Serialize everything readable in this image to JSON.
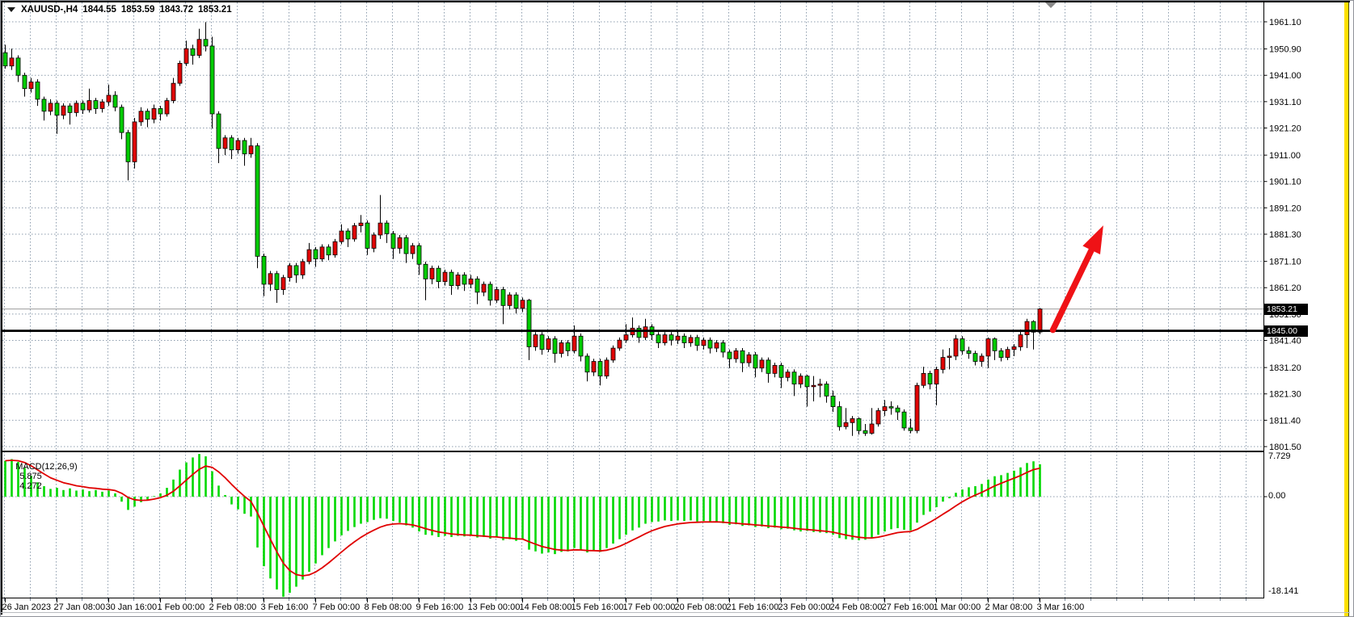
{
  "titlebar": {
    "symbol_period": "XAUUSD-,H4",
    "open": "1844.55",
    "high": "1853.59",
    "low": "1843.72",
    "close": "1853.21"
  },
  "price_axis": {
    "tick_labels": [
      "1961.10",
      "1950.90",
      "1941.00",
      "1931.10",
      "1921.20",
      "1911.00",
      "1901.10",
      "1891.20",
      "1881.30",
      "1871.10",
      "1861.20",
      "1851.30",
      "1841.40",
      "1831.20",
      "1821.30",
      "1811.40",
      "1801.50"
    ],
    "current_price_badge": "1853.21",
    "hline_badge": "1845.00"
  },
  "time_axis": {
    "labels": [
      "26 Jan 2023",
      "27 Jan 08:00",
      "30 Jan 16:00",
      "1 Feb 00:00",
      "2 Feb 08:00",
      "3 Feb 16:00",
      "7 Feb 00:00",
      "8 Feb 08:00",
      "9 Feb 16:00",
      "13 Feb 00:00",
      "14 Feb 08:00",
      "15 Feb 16:00",
      "17 Feb 00:00",
      "20 Feb 08:00",
      "21 Feb 16:00",
      "23 Feb 00:00",
      "24 Feb 08:00",
      "27 Feb 16:00",
      "1 Mar 00:00",
      "2 Mar 08:00",
      "3 Mar 16:00"
    ]
  },
  "macd_panel": {
    "label": "MACD(12,26,9)",
    "macd_value": "5.875",
    "signal_value": "4.272",
    "scale_top": "7.729",
    "scale_zero": "0.00",
    "scale_bottom": "-18.141"
  },
  "colors": {
    "bull_body": "#e00505",
    "bear_body": "#00cc00",
    "candle_outline": "#000000",
    "macd_hist": "#00d800",
    "macd_signal": "#e00000",
    "grid": "#8e9dae",
    "hline": "#000000",
    "current_price_line": "#9b9b9b",
    "arrow": "#ef1216",
    "axis_highlight": "#ffe000",
    "shift_marker": "#888888"
  },
  "chart_data": [
    {
      "type": "candlestick",
      "title": "XAUUSD-,H4",
      "timeframe": "H4",
      "x_labels_every_n_bars": 8,
      "y_ticks": [
        1961.1,
        1950.9,
        1941.0,
        1931.1,
        1921.2,
        1911.0,
        1901.1,
        1891.2,
        1881.3,
        1871.1,
        1861.2,
        1851.3,
        1841.4,
        1831.2,
        1821.3,
        1811.4,
        1801.5
      ],
      "ylim": [
        1800.2,
        1962.8
      ],
      "current_price": 1853.21,
      "horizontal_line": 1845.0,
      "annotations": [
        {
          "type": "arrow",
          "from_bar": 162,
          "from_price": 1845.3,
          "to_bar": 169.8,
          "to_price": 1884.6
        }
      ],
      "ohlc": [
        [
          1949.5,
          1952.5,
          1943.5,
          1944.5
        ],
        [
          1944.5,
          1951,
          1943,
          1947.5
        ],
        [
          1947.5,
          1948.5,
          1938.5,
          1941
        ],
        [
          1941,
          1942,
          1933,
          1936
        ],
        [
          1936,
          1940,
          1934.5,
          1938.5
        ],
        [
          1938.5,
          1939.5,
          1929.5,
          1932
        ],
        [
          1932,
          1933,
          1924,
          1927.5
        ],
        [
          1927.5,
          1932,
          1926,
          1930.5
        ],
        [
          1930.5,
          1931.5,
          1919,
          1926
        ],
        [
          1926,
          1930.5,
          1924.5,
          1929.5
        ],
        [
          1929.5,
          1930.5,
          1922.5,
          1927
        ],
        [
          1927,
          1931.5,
          1925.5,
          1930.5
        ],
        [
          1930.5,
          1931.5,
          1926.5,
          1928
        ],
        [
          1928,
          1936,
          1927,
          1931.5
        ],
        [
          1931.5,
          1932.5,
          1926.5,
          1928.5
        ],
        [
          1928.5,
          1932,
          1927,
          1931
        ],
        [
          1931,
          1937.5,
          1929.5,
          1933.5
        ],
        [
          1933.5,
          1935,
          1927.5,
          1929
        ],
        [
          1929,
          1930,
          1917,
          1919.5
        ],
        [
          1919.5,
          1920.5,
          1901.5,
          1908.5
        ],
        [
          1908.5,
          1925,
          1906,
          1923.5
        ],
        [
          1923.5,
          1929,
          1922,
          1927.5
        ],
        [
          1927.5,
          1928.5,
          1921.5,
          1924.5
        ],
        [
          1924.5,
          1930,
          1923,
          1928.5
        ],
        [
          1928.5,
          1929.5,
          1924,
          1926.5
        ],
        [
          1926.5,
          1932.5,
          1925.5,
          1931.5
        ],
        [
          1931.5,
          1940,
          1930.5,
          1938
        ],
        [
          1938,
          1946.5,
          1937,
          1945.5
        ],
        [
          1945.5,
          1954,
          1944.5,
          1951
        ],
        [
          1951,
          1952.5,
          1945,
          1948.5
        ],
        [
          1948.5,
          1958.5,
          1947.5,
          1954.5
        ],
        [
          1954.5,
          1961,
          1950,
          1952
        ],
        [
          1952,
          1955.5,
          1921,
          1926.5
        ],
        [
          1926.5,
          1927.5,
          1908,
          1913.5
        ],
        [
          1913.5,
          1918.5,
          1911,
          1917.5
        ],
        [
          1917.5,
          1918.5,
          1909.5,
          1913
        ],
        [
          1913,
          1917.5,
          1911.5,
          1916.5
        ],
        [
          1916.5,
          1917.5,
          1907,
          1911.5
        ],
        [
          1911.5,
          1917.5,
          1910,
          1914.5
        ],
        [
          1914.5,
          1915.5,
          1868.5,
          1873
        ],
        [
          1873,
          1874,
          1858,
          1862.5
        ],
        [
          1862.5,
          1867.5,
          1860,
          1866.5
        ],
        [
          1866.5,
          1867.5,
          1855.5,
          1860.5
        ],
        [
          1860.5,
          1866,
          1858.5,
          1865
        ],
        [
          1865,
          1870.5,
          1863.5,
          1869.5
        ],
        [
          1869.5,
          1870.5,
          1863,
          1866
        ],
        [
          1866,
          1872,
          1864.5,
          1871
        ],
        [
          1871,
          1878,
          1870,
          1875.5
        ],
        [
          1875.5,
          1876.5,
          1869,
          1872
        ],
        [
          1872,
          1877.5,
          1871,
          1876.5
        ],
        [
          1876.5,
          1877.5,
          1871.5,
          1873.5
        ],
        [
          1873.5,
          1879.5,
          1872.5,
          1878.5
        ],
        [
          1878.5,
          1885,
          1877.5,
          1882.5
        ],
        [
          1882.5,
          1883.5,
          1876.5,
          1879.5
        ],
        [
          1879.5,
          1885.5,
          1878.5,
          1884.5
        ],
        [
          1884.5,
          1888.5,
          1882,
          1885.5
        ],
        [
          1885.5,
          1886.5,
          1873.5,
          1876
        ],
        [
          1876,
          1882,
          1874.5,
          1881
        ],
        [
          1881,
          1896,
          1879.5,
          1885.5
        ],
        [
          1885.5,
          1886.5,
          1878,
          1881.5
        ],
        [
          1881.5,
          1882.5,
          1872,
          1876
        ],
        [
          1876,
          1881,
          1874,
          1880
        ],
        [
          1880,
          1881,
          1870.5,
          1874
        ],
        [
          1874,
          1878,
          1872,
          1877
        ],
        [
          1877,
          1878,
          1866,
          1870
        ],
        [
          1870,
          1871,
          1856.5,
          1864.5
        ],
        [
          1864.5,
          1869.5,
          1862.5,
          1868.5
        ],
        [
          1868.5,
          1869.5,
          1861,
          1863.5
        ],
        [
          1863.5,
          1868,
          1862,
          1867
        ],
        [
          1867,
          1868,
          1858.5,
          1862
        ],
        [
          1862,
          1867,
          1860.5,
          1866
        ],
        [
          1866,
          1867,
          1860,
          1862.5
        ],
        [
          1862.5,
          1866,
          1861,
          1864.5
        ],
        [
          1864.5,
          1865.5,
          1855,
          1859.5
        ],
        [
          1859.5,
          1863.5,
          1858,
          1862.5
        ],
        [
          1862.5,
          1863.5,
          1854.5,
          1856.5
        ],
        [
          1856.5,
          1861.5,
          1855.5,
          1860.5
        ],
        [
          1860.5,
          1861.5,
          1847.5,
          1854.5
        ],
        [
          1854.5,
          1859.5,
          1853,
          1858.5
        ],
        [
          1858.5,
          1859.5,
          1851.5,
          1853.5
        ],
        [
          1853.5,
          1857.5,
          1852,
          1856.5
        ],
        [
          1856.5,
          1857,
          1834,
          1839
        ],
        [
          1839,
          1844.5,
          1837.5,
          1843.5
        ],
        [
          1843.5,
          1844.5,
          1836,
          1838
        ],
        [
          1838,
          1843,
          1837,
          1842
        ],
        [
          1842,
          1843,
          1833,
          1836.5
        ],
        [
          1836.5,
          1841.5,
          1835,
          1840.5
        ],
        [
          1840.5,
          1841.5,
          1835.5,
          1837.5
        ],
        [
          1837.5,
          1847,
          1836.5,
          1843
        ],
        [
          1843,
          1844,
          1833.5,
          1835.5
        ],
        [
          1835.5,
          1836.5,
          1826,
          1829.5
        ],
        [
          1829.5,
          1834.5,
          1828,
          1833.5
        ],
        [
          1833.5,
          1834.5,
          1824.5,
          1828
        ],
        [
          1828,
          1835,
          1827,
          1834
        ],
        [
          1834,
          1839.5,
          1833,
          1838.5
        ],
        [
          1838.5,
          1842.5,
          1837.5,
          1841.5
        ],
        [
          1841.5,
          1847.5,
          1840.5,
          1843.5
        ],
        [
          1843.5,
          1850,
          1842.5,
          1846
        ],
        [
          1846,
          1847,
          1840.5,
          1842.5
        ],
        [
          1842.5,
          1849.5,
          1841.5,
          1846.5
        ],
        [
          1846.5,
          1847.5,
          1841.5,
          1843.5
        ],
        [
          1843.5,
          1844.5,
          1838.5,
          1840.5
        ],
        [
          1840.5,
          1844.5,
          1839.5,
          1843.5
        ],
        [
          1843.5,
          1844.5,
          1839.5,
          1841.5
        ],
        [
          1841.5,
          1845,
          1840,
          1843
        ],
        [
          1843,
          1844,
          1838.5,
          1840.5
        ],
        [
          1840.5,
          1843.5,
          1839,
          1842.5
        ],
        [
          1842.5,
          1843.5,
          1837.5,
          1839.5
        ],
        [
          1839.5,
          1842.5,
          1838,
          1841.5
        ],
        [
          1841.5,
          1842.5,
          1836.5,
          1838.5
        ],
        [
          1838.5,
          1841.5,
          1837,
          1840.5
        ],
        [
          1840.5,
          1841.5,
          1835,
          1837
        ],
        [
          1837,
          1838,
          1831,
          1834.5
        ],
        [
          1834.5,
          1838.5,
          1833,
          1837.5
        ],
        [
          1837.5,
          1838.5,
          1829.5,
          1833
        ],
        [
          1833,
          1837,
          1831.5,
          1836
        ],
        [
          1836,
          1837,
          1827.5,
          1831
        ],
        [
          1831,
          1835,
          1829.5,
          1834
        ],
        [
          1834,
          1835,
          1825.5,
          1829
        ],
        [
          1829,
          1833,
          1827.5,
          1832
        ],
        [
          1832,
          1833,
          1823.5,
          1827.5
        ],
        [
          1827.5,
          1830.5,
          1826,
          1829.5
        ],
        [
          1829.5,
          1830.5,
          1820.5,
          1825
        ],
        [
          1825,
          1829,
          1823.5,
          1828
        ],
        [
          1828,
          1828.5,
          1816.5,
          1824
        ],
        [
          1824,
          1828,
          1818.5,
          1824.5
        ],
        [
          1824.5,
          1827,
          1820,
          1825
        ],
        [
          1825,
          1826,
          1818,
          1820.5
        ],
        [
          1820.5,
          1822.5,
          1814.5,
          1816.5
        ],
        [
          1816.5,
          1818.5,
          1807.5,
          1809
        ],
        [
          1809,
          1816,
          1808,
          1810.5
        ],
        [
          1810.5,
          1813,
          1805.5,
          1812
        ],
        [
          1812,
          1812.5,
          1806,
          1807.5
        ],
        [
          1807.5,
          1810,
          1805.5,
          1806.5
        ],
        [
          1806.5,
          1816,
          1806,
          1810
        ],
        [
          1810,
          1816,
          1809,
          1815
        ],
        [
          1815,
          1819,
          1813,
          1816.5
        ],
        [
          1816.5,
          1818.5,
          1813.5,
          1816
        ],
        [
          1816,
          1817,
          1811.5,
          1814.5
        ],
        [
          1814.5,
          1815.5,
          1807.5,
          1808.5
        ],
        [
          1808.5,
          1812,
          1806.5,
          1807.5
        ],
        [
          1807.5,
          1825.5,
          1806.5,
          1824.5
        ],
        [
          1824.5,
          1831.5,
          1823.5,
          1829
        ],
        [
          1829,
          1830,
          1823,
          1825
        ],
        [
          1825,
          1831.5,
          1817,
          1830.5
        ],
        [
          1830.5,
          1838,
          1829,
          1835
        ],
        [
          1835,
          1838.5,
          1830.5,
          1835.5
        ],
        [
          1835.5,
          1843.5,
          1834,
          1842
        ],
        [
          1842,
          1843,
          1836,
          1837.5
        ],
        [
          1837.5,
          1839,
          1834.5,
          1836.5
        ],
        [
          1836.5,
          1837.5,
          1832,
          1833.5
        ],
        [
          1833.5,
          1836.5,
          1831.5,
          1835.5
        ],
        [
          1835.5,
          1842.5,
          1831,
          1842
        ],
        [
          1842,
          1842.5,
          1834,
          1837.5
        ],
        [
          1837.5,
          1838.5,
          1833.5,
          1835
        ],
        [
          1835,
          1839,
          1834,
          1838
        ],
        [
          1838,
          1840,
          1835.5,
          1839
        ],
        [
          1839,
          1845.5,
          1837.5,
          1843.5
        ],
        [
          1843.5,
          1849.5,
          1838.5,
          1848.5
        ],
        [
          1848.5,
          1849,
          1838,
          1844.5
        ],
        [
          1844.55,
          1853.59,
          1843.72,
          1853.21
        ]
      ]
    },
    {
      "type": "bar",
      "title": "MACD(12,26,9)",
      "signal_period": 9,
      "ylim": [
        -18.141,
        7.729
      ],
      "last_values": {
        "macd": 5.875,
        "signal": 4.272
      },
      "values": [
        6.5,
        6.8,
        6.3,
        5.2,
        3.8,
        2.6,
        1.9,
        1.4,
        1.6,
        1.2,
        1.5,
        1.1,
        1.3,
        1.0,
        1.2,
        0.9,
        1.1,
        0.6,
        -0.9,
        -2.4,
        -1.8,
        -1.0,
        -0.5,
        0.1,
        0.6,
        1.6,
        3.1,
        4.9,
        6.2,
        7.1,
        7.729,
        7.3,
        4.6,
        2.0,
        0.3,
        -1.4,
        -2.3,
        -3.1,
        -3.6,
        -9.2,
        -12.6,
        -14.8,
        -16.8,
        -18.141,
        -17.4,
        -16.3,
        -15.0,
        -13.6,
        -12.1,
        -10.6,
        -9.3,
        -8.1,
        -7.0,
        -6.2,
        -5.5,
        -4.9,
        -4.6,
        -4.2,
        -3.9,
        -4.0,
        -4.4,
        -4.7,
        -5.2,
        -5.6,
        -6.3,
        -6.9,
        -7.0,
        -7.3,
        -7.1,
        -7.3,
        -7.1,
        -7.2,
        -7.1,
        -7.4,
        -7.3,
        -7.6,
        -7.4,
        -7.9,
        -7.7,
        -8.0,
        -7.8,
        -9.6,
        -9.9,
        -10.3,
        -10.1,
        -10.4,
        -10.0,
        -9.9,
        -9.3,
        -9.7,
        -10.1,
        -9.8,
        -10.0,
        -9.3,
        -8.5,
        -7.7,
        -6.9,
        -6.1,
        -5.6,
        -4.9,
        -4.6,
        -4.5,
        -4.3,
        -4.4,
        -4.3,
        -4.4,
        -4.3,
        -4.5,
        -4.4,
        -4.6,
        -4.5,
        -4.8,
        -5.1,
        -5.0,
        -5.3,
        -5.2,
        -5.5,
        -5.4,
        -5.7,
        -5.6,
        -5.9,
        -5.8,
        -6.1,
        -6.3,
        -6.2,
        -6.4,
        -6.5,
        -6.6,
        -6.9,
        -7.5,
        -7.7,
        -7.8,
        -7.9,
        -7.8,
        -7.5,
        -6.9,
        -6.3,
        -5.9,
        -5.7,
        -6.0,
        -6.1,
        -4.7,
        -3.3,
        -2.7,
        -1.9,
        -0.9,
        -0.3,
        0.7,
        1.3,
        1.7,
        1.9,
        2.3,
        3.1,
        3.7,
        3.9,
        4.3,
        4.7,
        5.3,
        6.1,
        6.4,
        5.875
      ]
    }
  ]
}
